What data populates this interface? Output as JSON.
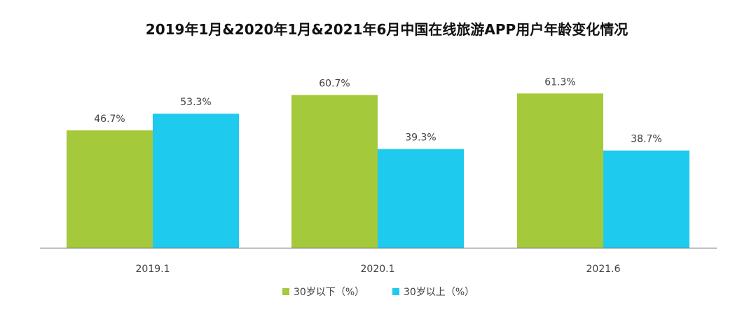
{
  "chart_data": {
    "type": "bar",
    "title": "2019年1月&2020年1月&2021年6月中国在线旅游APP用户年龄变化情况",
    "categories": [
      "2019.1",
      "2020.1",
      "2021.6"
    ],
    "series": [
      {
        "name": "30岁以下（%）",
        "values": [
          46.7,
          60.7,
          61.3
        ],
        "labels": [
          "46.7%",
          "60.7%",
          "61.3%"
        ],
        "color": "#a4c93a"
      },
      {
        "name": "30岁以上（%）",
        "values": [
          53.3,
          39.3,
          38.7
        ],
        "labels": [
          "53.3%",
          "39.3%",
          "38.7%"
        ],
        "color": "#1ecaee"
      }
    ],
    "xlabel": "",
    "ylabel": "",
    "ylim": [
      0,
      70
    ],
    "grid": false,
    "legend_position": "bottom-center",
    "axis_color": "#7f7f7f"
  }
}
